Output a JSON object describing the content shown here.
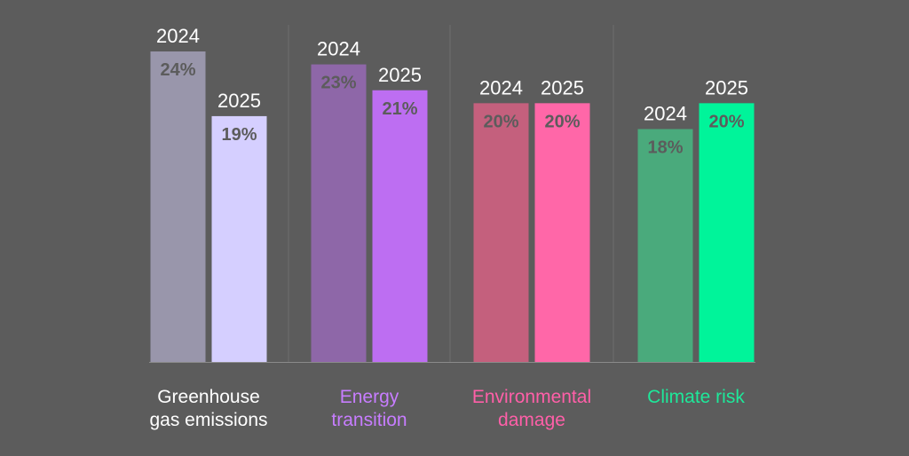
{
  "chart_data": {
    "type": "bar",
    "title": "",
    "xlabel": "",
    "ylabel": "",
    "ylim": [
      0,
      24
    ],
    "grid": false,
    "legend": "none",
    "categories": [
      {
        "label_lines": [
          "Greenhouse",
          "gas emissions"
        ],
        "label_color": "#ffffff"
      },
      {
        "label_lines": [
          "Energy",
          "transition"
        ],
        "label_color": "#c77dff"
      },
      {
        "label_lines": [
          "Environmental",
          "damage"
        ],
        "label_color": "#ff5fa8"
      },
      {
        "label_lines": [
          "Climate risk"
        ],
        "label_color": "#1ee89a"
      }
    ],
    "series": [
      {
        "name": "2024",
        "values": [
          24,
          23,
          20,
          18
        ],
        "value_labels": [
          "24%",
          "23%",
          "20%",
          "18%"
        ],
        "colors": [
          "#9996ab",
          "#8e67a8",
          "#c4607d",
          "#4aaa7c"
        ]
      },
      {
        "name": "2025",
        "values": [
          19,
          21,
          20,
          20
        ],
        "value_labels": [
          "19%",
          "21%",
          "20%",
          "20%"
        ],
        "colors": [
          "#d5cfff",
          "#bd6ef2",
          "#ff67a8",
          "#00f49a"
        ]
      }
    ],
    "value_label_color": "#5c5c5c",
    "year_label_color": "#ffffff",
    "axis_color": "#8a8a8a",
    "separator_color": "#6e6e6e"
  }
}
